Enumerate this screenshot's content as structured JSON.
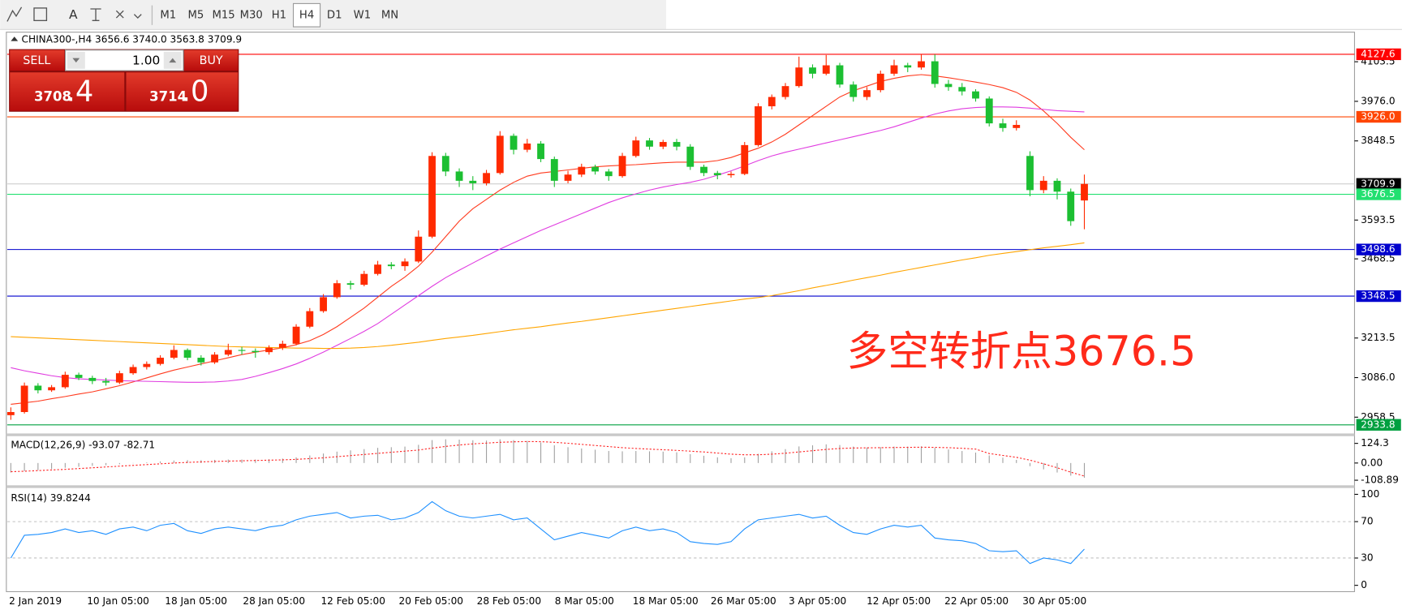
{
  "toolbar": {
    "text_tool": "A",
    "timeframes": [
      "M1",
      "M5",
      "M15",
      "M30",
      "H1",
      "H4",
      "D1",
      "W1",
      "MN"
    ],
    "active": "H4"
  },
  "trade_panel": {
    "sell": "SELL",
    "buy": "BUY",
    "lots": "1.00",
    "bid_big": "3708",
    "bid_small": ".4",
    "ask_big": "3714",
    "ask_small": ".0"
  },
  "chart_data": [
    {
      "type": "candlestick",
      "title": "CHINA300-,H4",
      "title_values": [
        "3656.6",
        "3740.0",
        "3563.8",
        "3709.9"
      ],
      "x_labels": [
        "2 Jan 2019",
        "10 Jan 05:00",
        "18 Jan 05:00",
        "28 Jan 05:00",
        "12 Feb 05:00",
        "20 Feb 05:00",
        "28 Feb 05:00",
        "8 Mar 05:00",
        "18 Mar 05:00",
        "26 Mar 05:00",
        "3 Apr 05:00",
        "12 Apr 05:00",
        "22 Apr 05:00",
        "30 Apr 05:00"
      ],
      "up_color": "#ff2a00",
      "down_color": "#1cbf32",
      "candles": [
        [
          2965,
          2990,
          2950,
          2975
        ],
        [
          2975,
          3070,
          2970,
          3060
        ],
        [
          3060,
          3068,
          3035,
          3045
        ],
        [
          3045,
          3062,
          3040,
          3055
        ],
        [
          3055,
          3105,
          3050,
          3095
        ],
        [
          3095,
          3102,
          3078,
          3085
        ],
        [
          3085,
          3092,
          3065,
          3075
        ],
        [
          3075,
          3085,
          3060,
          3070
        ],
        [
          3070,
          3108,
          3065,
          3100
        ],
        [
          3100,
          3128,
          3095,
          3120
        ],
        [
          3120,
          3138,
          3112,
          3130
        ],
        [
          3130,
          3158,
          3125,
          3150
        ],
        [
          3150,
          3190,
          3145,
          3175
        ],
        [
          3175,
          3180,
          3142,
          3150
        ],
        [
          3150,
          3158,
          3125,
          3135
        ],
        [
          3135,
          3168,
          3130,
          3160
        ],
        [
          3160,
          3195,
          3155,
          3175
        ],
        [
          3175,
          3185,
          3160,
          3172
        ],
        [
          3172,
          3180,
          3150,
          3168
        ],
        [
          3168,
          3190,
          3160,
          3182
        ],
        [
          3182,
          3205,
          3175,
          3195
        ],
        [
          3195,
          3258,
          3190,
          3250
        ],
        [
          3250,
          3310,
          3245,
          3300
        ],
        [
          3300,
          3355,
          3295,
          3345
        ],
        [
          3345,
          3400,
          3340,
          3390
        ],
        [
          3390,
          3398,
          3370,
          3385
        ],
        [
          3385,
          3430,
          3380,
          3420
        ],
        [
          3420,
          3462,
          3415,
          3450
        ],
        [
          3450,
          3458,
          3435,
          3445
        ],
        [
          3445,
          3470,
          3430,
          3460
        ],
        [
          3460,
          3560,
          3455,
          3540
        ],
        [
          3540,
          3812,
          3535,
          3800
        ],
        [
          3800,
          3810,
          3735,
          3750
        ],
        [
          3750,
          3760,
          3700,
          3720
        ],
        [
          3720,
          3735,
          3690,
          3712
        ],
        [
          3712,
          3755,
          3705,
          3745
        ],
        [
          3745,
          3880,
          3740,
          3865
        ],
        [
          3865,
          3872,
          3805,
          3820
        ],
        [
          3820,
          3855,
          3812,
          3840
        ],
        [
          3840,
          3848,
          3780,
          3790
        ],
        [
          3790,
          3798,
          3700,
          3720
        ],
        [
          3720,
          3752,
          3712,
          3740
        ],
        [
          3740,
          3775,
          3732,
          3765
        ],
        [
          3765,
          3772,
          3740,
          3750
        ],
        [
          3750,
          3758,
          3720,
          3735
        ],
        [
          3735,
          3810,
          3730,
          3800
        ],
        [
          3800,
          3862,
          3795,
          3850
        ],
        [
          3850,
          3858,
          3820,
          3830
        ],
        [
          3830,
          3852,
          3822,
          3845
        ],
        [
          3845,
          3855,
          3818,
          3830
        ],
        [
          3830,
          3838,
          3755,
          3765
        ],
        [
          3765,
          3772,
          3735,
          3745
        ],
        [
          3745,
          3752,
          3725,
          3738
        ],
        [
          3738,
          3750,
          3730,
          3742
        ],
        [
          3742,
          3845,
          3738,
          3835
        ],
        [
          3835,
          3970,
          3830,
          3960
        ],
        [
          3960,
          3998,
          3950,
          3990
        ],
        [
          3990,
          4035,
          3982,
          4025
        ],
        [
          4025,
          4120,
          4020,
          4085
        ],
        [
          4085,
          4095,
          4050,
          4065
        ],
        [
          4065,
          4125,
          4060,
          4092
        ],
        [
          4092,
          4100,
          4020,
          4030
        ],
        [
          4030,
          4040,
          3975,
          3990
        ],
        [
          3990,
          4022,
          3980,
          4012
        ],
        [
          4012,
          4075,
          4005,
          4065
        ],
        [
          4065,
          4110,
          4058,
          4092
        ],
        [
          4092,
          4100,
          4070,
          4085
        ],
        [
          4085,
          4127,
          4078,
          4105
        ],
        [
          4105,
          4127,
          4020,
          4032
        ],
        [
          4032,
          4045,
          4010,
          4022
        ],
        [
          4022,
          4035,
          3995,
          4008
        ],
        [
          4008,
          4015,
          3975,
          3985
        ],
        [
          3985,
          3992,
          3895,
          3905
        ],
        [
          3905,
          3920,
          3878,
          3890
        ],
        [
          3890,
          3915,
          3882,
          3900
        ],
        [
          3800,
          3815,
          3670,
          3690
        ],
        [
          3690,
          3735,
          3680,
          3720
        ],
        [
          3720,
          3728,
          3660,
          3685
        ],
        [
          3685,
          3695,
          3575,
          3590
        ],
        [
          3656.6,
          3740,
          3563.8,
          3709.9
        ]
      ],
      "lines": [
        {
          "color": "#ff3b1f",
          "values": [
            3000,
            3005,
            3010,
            3018,
            3025,
            3033,
            3040,
            3050,
            3060,
            3072,
            3085,
            3098,
            3110,
            3120,
            3130,
            3140,
            3150,
            3160,
            3168,
            3175,
            3182,
            3192,
            3205,
            3225,
            3250,
            3280,
            3310,
            3345,
            3380,
            3410,
            3445,
            3490,
            3540,
            3590,
            3630,
            3660,
            3690,
            3715,
            3735,
            3745,
            3750,
            3755,
            3760,
            3765,
            3768,
            3770,
            3772,
            3775,
            3778,
            3780,
            3780,
            3780,
            3785,
            3795,
            3810,
            3825,
            3845,
            3870,
            3900,
            3930,
            3960,
            3990,
            4010,
            4025,
            4040,
            4050,
            4058,
            4062,
            4058,
            4052,
            4045,
            4038,
            4030,
            4020,
            4005,
            3980,
            3945,
            3905,
            3860,
            3820
          ]
        },
        {
          "color": "#e03ce0",
          "values": [
            3118,
            3108,
            3100,
            3092,
            3086,
            3082,
            3080,
            3078,
            3076,
            3075,
            3074,
            3073,
            3072,
            3071,
            3071,
            3072,
            3075,
            3080,
            3090,
            3102,
            3115,
            3130,
            3148,
            3168,
            3190,
            3212,
            3235,
            3260,
            3290,
            3320,
            3350,
            3380,
            3408,
            3432,
            3455,
            3478,
            3500,
            3520,
            3540,
            3560,
            3578,
            3596,
            3614,
            3632,
            3650,
            3665,
            3678,
            3690,
            3700,
            3708,
            3715,
            3725,
            3738,
            3752,
            3768,
            3785,
            3800,
            3812,
            3822,
            3832,
            3842,
            3852,
            3862,
            3872,
            3882,
            3894,
            3908,
            3922,
            3935,
            3945,
            3952,
            3956,
            3958,
            3958,
            3957,
            3954,
            3950,
            3946,
            3944,
            3942
          ]
        },
        {
          "color": "#ffa500",
          "values": [
            3218,
            3216,
            3214,
            3212,
            3210,
            3208,
            3206,
            3204,
            3202,
            3200,
            3198,
            3196,
            3194,
            3192,
            3190,
            3188,
            3186,
            3185,
            3184,
            3183,
            3182,
            3181,
            3181,
            3180,
            3180,
            3181,
            3183,
            3186,
            3190,
            3195,
            3200,
            3206,
            3212,
            3217,
            3222,
            3228,
            3234,
            3240,
            3245,
            3250,
            3256,
            3262,
            3267,
            3273,
            3279,
            3285,
            3291,
            3297,
            3303,
            3309,
            3315,
            3321,
            3327,
            3333,
            3339,
            3344,
            3350,
            3358,
            3366,
            3375,
            3383,
            3391,
            3400,
            3408,
            3416,
            3425,
            3433,
            3441,
            3449,
            3457,
            3465,
            3472,
            3480,
            3486,
            3492,
            3498,
            3504,
            3509,
            3514,
            3520
          ]
        }
      ],
      "hlines": [
        {
          "value": 4127.6,
          "label": "4127.6",
          "color": "#ff0000"
        },
        {
          "value": 3926,
          "label": "3926.0",
          "color": "#ff4500"
        },
        {
          "value": 3709.9,
          "label": "3709.9",
          "color": "#000000",
          "line_color": "#c8c8c8"
        },
        {
          "value": 3676.5,
          "label": "3676.5",
          "color": "#22e070"
        },
        {
          "value": 3498.6,
          "label": "3498.6",
          "color": "#0000cd"
        },
        {
          "value": 3348.5,
          "label": "3348.5",
          "color": "#0000cd"
        },
        {
          "value": 2933.8,
          "label": "2933.8",
          "color": "#00a040"
        }
      ],
      "ylim": [
        2906,
        4193
      ],
      "yticks": [
        4103.5,
        {
          "value": 3976,
          "label": "3976.0"
        },
        3848.5,
        3593.5,
        3468.5,
        3213.5,
        {
          "value": 3086,
          "label": "3086.0"
        },
        2958.5
      ],
      "annotation": "多空转折点3676.5"
    },
    {
      "type": "macd",
      "title": "MACD(12,26,9)",
      "color": "#a0a0a0",
      "signal_color": "#ff2020",
      "main": [
        -60,
        -52,
        -45,
        -38,
        -30,
        -24,
        -18,
        -14,
        -8,
        -2,
        4,
        10,
        16,
        18,
        18,
        20,
        22,
        22,
        22,
        24,
        28,
        36,
        48,
        60,
        72,
        80,
        88,
        96,
        100,
        104,
        115,
        145,
        150,
        148,
        144,
        142,
        150,
        145,
        140,
        130,
        112,
        100,
        92,
        84,
        76,
        74,
        76,
        74,
        72,
        68,
        56,
        46,
        36,
        30,
        36,
        58,
        74,
        88,
        105,
        112,
        118,
        114,
        104,
        98,
        100,
        104,
        104,
        106,
        96,
        86,
        76,
        66,
        48,
        34,
        20,
        -20,
        -40,
        -60,
        -80,
        -93.07
      ],
      "signal": [
        -55,
        -52,
        -48,
        -44,
        -40,
        -35,
        -30,
        -25,
        -20,
        -15,
        -10,
        -5,
        0,
        4,
        7,
        10,
        12,
        14,
        16,
        18,
        20,
        23,
        28,
        33,
        40,
        47,
        54,
        61,
        68,
        75,
        82,
        94,
        105,
        114,
        121,
        126,
        131,
        134,
        136,
        135,
        131,
        125,
        118,
        111,
        104,
        97,
        92,
        88,
        84,
        80,
        75,
        70,
        63,
        56,
        52,
        52,
        56,
        62,
        70,
        78,
        86,
        92,
        95,
        96,
        97,
        98,
        99,
        100,
        99,
        97,
        93,
        88,
        60,
        48,
        36,
        18,
        -5,
        -30,
        -58,
        -82.71
      ],
      "ylim": [
        -141,
        170
      ],
      "yticks": [
        124.3,
        {
          "value": 0,
          "label": "0.00"
        },
        -108.89
      ]
    },
    {
      "type": "line",
      "title": "RSI(14)",
      "color": "#1e90ff",
      "values": [
        30,
        55,
        56,
        58,
        62,
        58,
        60,
        56,
        62,
        64,
        60,
        66,
        68,
        60,
        57,
        62,
        64,
        62,
        60,
        64,
        66,
        72,
        76,
        78,
        80,
        74,
        76,
        77,
        72,
        74,
        80,
        92,
        82,
        76,
        74,
        76,
        78,
        72,
        74,
        62,
        50,
        54,
        58,
        55,
        52,
        60,
        64,
        60,
        62,
        58,
        48,
        46,
        45,
        48,
        62,
        72,
        74,
        76,
        78,
        74,
        76,
        66,
        58,
        56,
        62,
        66,
        64,
        66,
        52,
        50,
        49,
        46,
        38,
        37,
        38,
        24,
        30,
        28,
        24,
        39.8244
      ],
      "ylim": [
        -5,
        106
      ],
      "yticks": [
        100,
        70,
        30,
        0
      ],
      "levels": [
        70,
        30
      ]
    }
  ]
}
